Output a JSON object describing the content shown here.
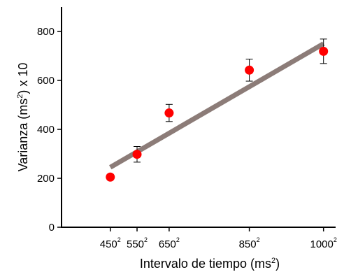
{
  "chart_data": {
    "type": "scatter",
    "xlabel": "Intervalo de tiempo (ms²)",
    "ylabel": "Varianza (ms²) x 10",
    "x_tick_labels": [
      {
        "base": "450",
        "exp": "2",
        "value": 202500
      },
      {
        "base": "550",
        "exp": "2",
        "value": 302500
      },
      {
        "base": "650",
        "exp": "2",
        "value": 422500
      },
      {
        "base": "850",
        "exp": "2",
        "value": 722500
      },
      {
        "base": "1000",
        "exp": "2",
        "value": 1000000
      }
    ],
    "y_ticks": [
      0,
      200,
      400,
      600,
      800
    ],
    "xlim": [
      20000,
      1040000
    ],
    "ylim": [
      0,
      900
    ],
    "points": [
      {
        "x": 202500,
        "y": 205,
        "err": 10
      },
      {
        "x": 302500,
        "y": 298,
        "err": 32
      },
      {
        "x": 422500,
        "y": 467,
        "err": 35
      },
      {
        "x": 722500,
        "y": 642,
        "err": 45
      },
      {
        "x": 1000000,
        "y": 719,
        "err": 50
      }
    ],
    "fit_line": {
      "x": [
        202500,
        1000000
      ],
      "y": [
        245,
        750
      ]
    },
    "colors": {
      "points": "#ff0000",
      "fit_line": "#8c7c78",
      "error_bars": "#000000",
      "axes": "#000000"
    }
  }
}
